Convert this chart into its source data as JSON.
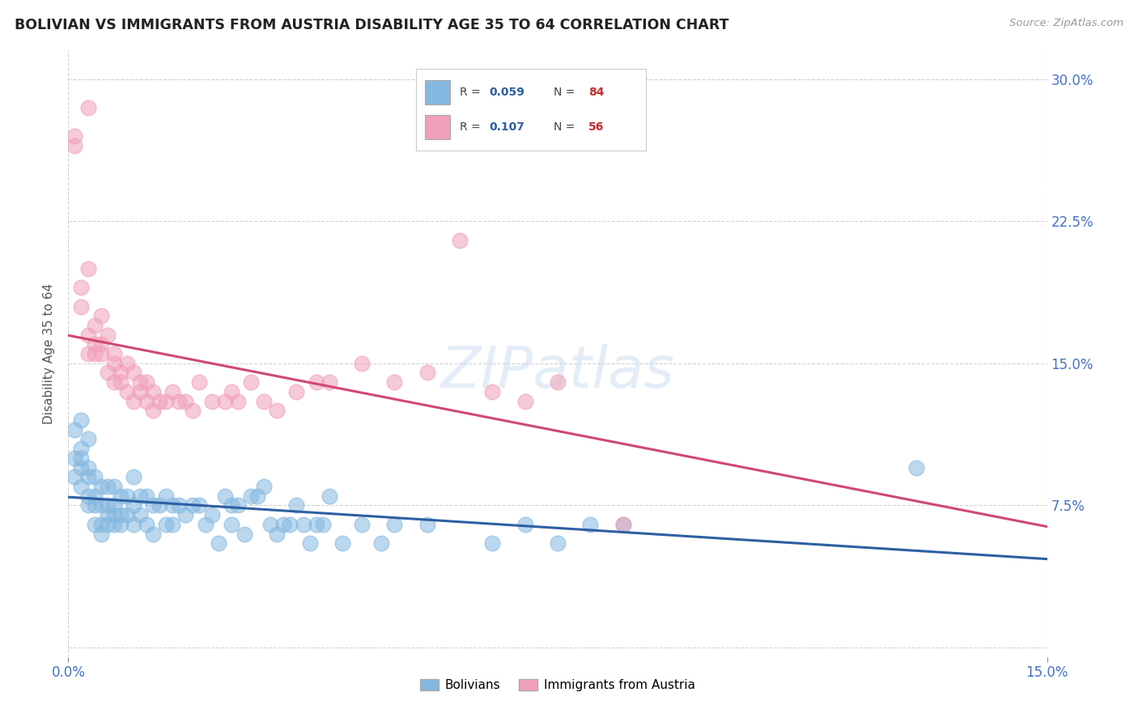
{
  "title": "BOLIVIAN VS IMMIGRANTS FROM AUSTRIA DISABILITY AGE 35 TO 64 CORRELATION CHART",
  "source": "Source: ZipAtlas.com",
  "ylabel": "Disability Age 35 to 64",
  "yticks": [
    0.0,
    0.075,
    0.15,
    0.225,
    0.3
  ],
  "ytick_labels": [
    "",
    "7.5%",
    "15.0%",
    "22.5%",
    "30.0%"
  ],
  "xlim": [
    0.0,
    0.15
  ],
  "ylim": [
    -0.005,
    0.315
  ],
  "blue_color": "#85b8e0",
  "pink_color": "#f0a0b8",
  "blue_line_color": "#2e5fa3",
  "pink_line_color": "#d04870",
  "watermark": "ZIPatlas",
  "blue_x": [
    0.001,
    0.001,
    0.001,
    0.002,
    0.002,
    0.002,
    0.002,
    0.002,
    0.003,
    0.003,
    0.003,
    0.003,
    0.003,
    0.004,
    0.004,
    0.004,
    0.004,
    0.005,
    0.005,
    0.005,
    0.005,
    0.006,
    0.006,
    0.006,
    0.006,
    0.007,
    0.007,
    0.007,
    0.007,
    0.008,
    0.008,
    0.008,
    0.009,
    0.009,
    0.01,
    0.01,
    0.01,
    0.011,
    0.011,
    0.012,
    0.012,
    0.013,
    0.013,
    0.014,
    0.015,
    0.015,
    0.016,
    0.016,
    0.017,
    0.018,
    0.019,
    0.02,
    0.021,
    0.022,
    0.023,
    0.024,
    0.025,
    0.025,
    0.026,
    0.027,
    0.028,
    0.029,
    0.03,
    0.031,
    0.032,
    0.033,
    0.034,
    0.035,
    0.036,
    0.037,
    0.038,
    0.039,
    0.04,
    0.042,
    0.045,
    0.048,
    0.05,
    0.055,
    0.065,
    0.07,
    0.075,
    0.08,
    0.085,
    0.13
  ],
  "blue_y": [
    0.115,
    0.1,
    0.09,
    0.12,
    0.105,
    0.095,
    0.085,
    0.1,
    0.11,
    0.09,
    0.08,
    0.075,
    0.095,
    0.09,
    0.08,
    0.075,
    0.065,
    0.085,
    0.075,
    0.065,
    0.06,
    0.085,
    0.075,
    0.07,
    0.065,
    0.085,
    0.075,
    0.07,
    0.065,
    0.08,
    0.07,
    0.065,
    0.08,
    0.07,
    0.09,
    0.075,
    0.065,
    0.08,
    0.07,
    0.08,
    0.065,
    0.075,
    0.06,
    0.075,
    0.08,
    0.065,
    0.075,
    0.065,
    0.075,
    0.07,
    0.075,
    0.075,
    0.065,
    0.07,
    0.055,
    0.08,
    0.075,
    0.065,
    0.075,
    0.06,
    0.08,
    0.08,
    0.085,
    0.065,
    0.06,
    0.065,
    0.065,
    0.075,
    0.065,
    0.055,
    0.065,
    0.065,
    0.08,
    0.055,
    0.065,
    0.055,
    0.065,
    0.065,
    0.055,
    0.065,
    0.055,
    0.065,
    0.065,
    0.095
  ],
  "pink_x": [
    0.001,
    0.001,
    0.002,
    0.002,
    0.003,
    0.003,
    0.003,
    0.003,
    0.004,
    0.004,
    0.004,
    0.005,
    0.005,
    0.005,
    0.006,
    0.006,
    0.007,
    0.007,
    0.007,
    0.008,
    0.008,
    0.009,
    0.009,
    0.01,
    0.01,
    0.011,
    0.011,
    0.012,
    0.012,
    0.013,
    0.013,
    0.014,
    0.015,
    0.016,
    0.017,
    0.018,
    0.019,
    0.02,
    0.022,
    0.024,
    0.025,
    0.026,
    0.028,
    0.03,
    0.032,
    0.035,
    0.038,
    0.04,
    0.045,
    0.05,
    0.055,
    0.06,
    0.065,
    0.07,
    0.075,
    0.085
  ],
  "pink_y": [
    0.27,
    0.265,
    0.18,
    0.19,
    0.155,
    0.165,
    0.2,
    0.285,
    0.17,
    0.155,
    0.16,
    0.16,
    0.175,
    0.155,
    0.165,
    0.145,
    0.155,
    0.14,
    0.15,
    0.145,
    0.14,
    0.15,
    0.135,
    0.145,
    0.13,
    0.135,
    0.14,
    0.13,
    0.14,
    0.135,
    0.125,
    0.13,
    0.13,
    0.135,
    0.13,
    0.13,
    0.125,
    0.14,
    0.13,
    0.13,
    0.135,
    0.13,
    0.14,
    0.13,
    0.125,
    0.135,
    0.14,
    0.14,
    0.15,
    0.14,
    0.145,
    0.215,
    0.135,
    0.13,
    0.14,
    0.065
  ]
}
